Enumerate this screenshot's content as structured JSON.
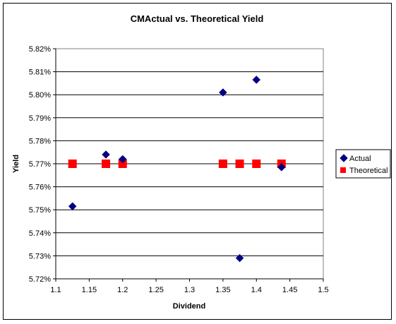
{
  "chart_data": {
    "type": "scatter",
    "title": "CMActual vs. Theoretical Yield",
    "xlabel": "Dividend",
    "ylabel": "Yield",
    "xlim": [
      1.1,
      1.5
    ],
    "ylim": [
      0.0572,
      0.0582
    ],
    "x_ticks": [
      "1.1",
      "1.15",
      "1.2",
      "1.25",
      "1.3",
      "1.35",
      "1.4",
      "1.45",
      "1.5"
    ],
    "y_ticks": [
      "5.72%",
      "5.73%",
      "5.74%",
      "5.75%",
      "5.76%",
      "5.77%",
      "5.78%",
      "5.79%",
      "5.80%",
      "5.81%",
      "5.82%"
    ],
    "grid": "horizontal major",
    "legend_position": "right",
    "series": [
      {
        "name": "Actual",
        "marker": "diamond",
        "color": "#000080",
        "x": [
          1.125,
          1.175,
          1.2,
          1.35,
          1.375,
          1.4,
          1.4375
        ],
        "y": [
          0.057515,
          0.05774,
          0.05772,
          0.05801,
          0.05729,
          0.058065,
          0.057685
        ]
      },
      {
        "name": "Theoretical",
        "marker": "square",
        "color": "#ff0000",
        "x": [
          1.125,
          1.175,
          1.2,
          1.35,
          1.375,
          1.4,
          1.4375
        ],
        "y": [
          0.0577,
          0.0577,
          0.0577,
          0.0577,
          0.0577,
          0.0577,
          0.0577
        ]
      }
    ]
  }
}
